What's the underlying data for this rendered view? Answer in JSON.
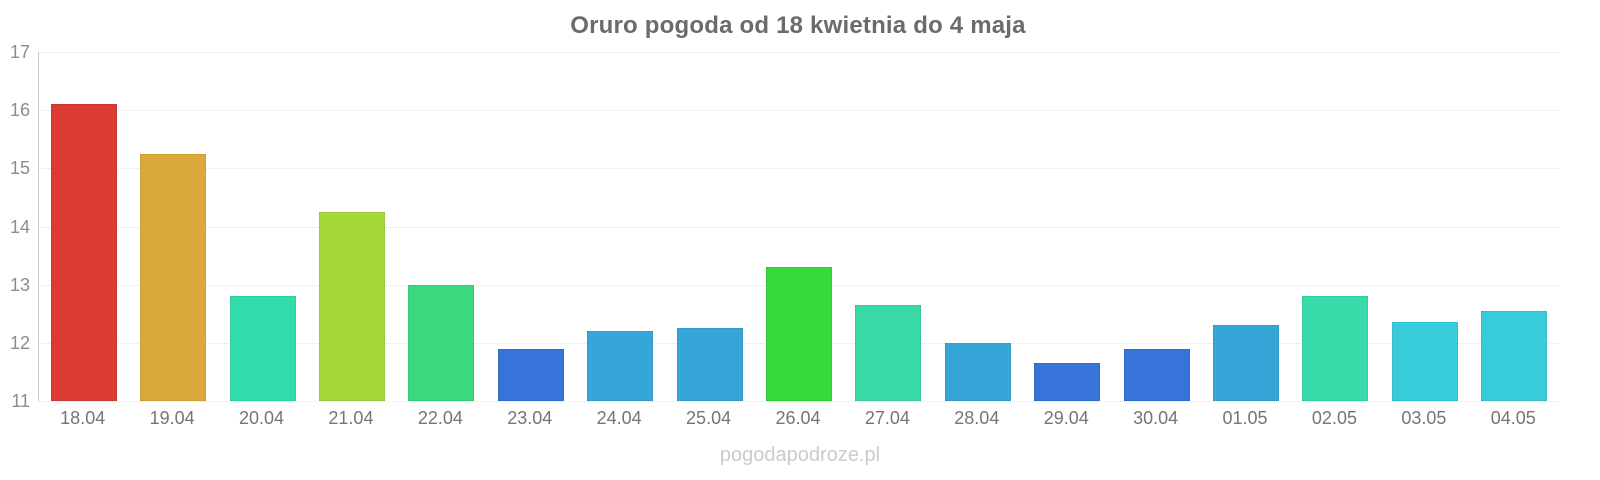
{
  "watermark": "pogodapodroze.pl",
  "chart_data": {
    "type": "bar",
    "title": "Oruro pogoda od 18 kwietnia do 4 maja",
    "categories": [
      "18.04",
      "19.04",
      "20.04",
      "21.04",
      "22.04",
      "23.04",
      "24.04",
      "25.04",
      "26.04",
      "27.04",
      "28.04",
      "29.04",
      "30.04",
      "01.05",
      "02.05",
      "03.05",
      "04.05"
    ],
    "values": [
      16.1,
      15.25,
      12.8,
      14.25,
      13.0,
      11.9,
      12.2,
      12.25,
      13.3,
      12.65,
      12.0,
      11.65,
      11.9,
      12.3,
      12.8,
      12.35,
      12.55
    ],
    "bar_colors": [
      "#db3b33",
      "#dba83b",
      "#35dcab",
      "#a6d938",
      "#3bd97e",
      "#3674d9",
      "#36a6d9",
      "#36a6d9",
      "#38d93a",
      "#38d9a6",
      "#36a6d9",
      "#3674d9",
      "#3674d9",
      "#36a6d9",
      "#38dcab",
      "#38cbd9",
      "#38cbd9"
    ],
    "xlabel": "",
    "ylabel": "",
    "ylim": [
      11,
      17
    ],
    "yticks": [
      11,
      12,
      13,
      14,
      15,
      16,
      17
    ],
    "grid": "horizontal-dotted",
    "legend": "none",
    "colors": {
      "title_text": "#6b6b6b",
      "axis_line": "#cccccc",
      "gridline": "#e4e4e4",
      "y_tick_text": "#8c8c8c",
      "x_tick_text": "#757575",
      "watermark_text": "#cbcbcb",
      "background": "#ffffff"
    }
  }
}
